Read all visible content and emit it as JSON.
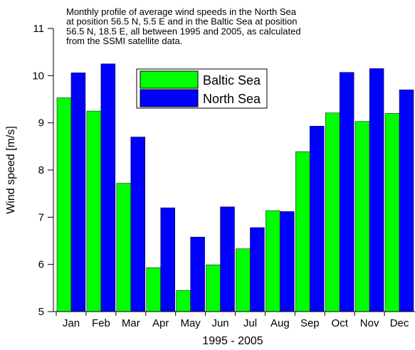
{
  "chart_data": {
    "type": "bar",
    "title": [
      "Monthly profile of average wind speeds in the North Sea",
      "at position 56.5 N, 5.5 E and in the Baltic Sea at position",
      "56.5 N, 18.5 E, all between 1995 and 2005, as calculated",
      "from the SSMI satellite data."
    ],
    "x_label": "1995 - 2005",
    "y_label": "Wind speed  [m/s]",
    "categories": [
      "Jan",
      "Feb",
      "Mar",
      "Apr",
      "May",
      "Jun",
      "Jul",
      "Aug",
      "Sep",
      "Oct",
      "Nov",
      "Dec"
    ],
    "series": [
      {
        "name": "Baltic Sea",
        "color": "#00ff00",
        "values": [
          9.53,
          9.25,
          7.72,
          5.93,
          5.45,
          5.99,
          6.33,
          7.14,
          8.39,
          9.21,
          9.03,
          9.2
        ]
      },
      {
        "name": "North Sea",
        "color": "#0000ff",
        "values": [
          10.06,
          10.25,
          8.7,
          7.2,
          6.58,
          7.22,
          6.78,
          7.12,
          8.93,
          10.07,
          10.15,
          9.7
        ]
      }
    ],
    "ylim": [
      5,
      11
    ],
    "yticks": [
      5,
      6,
      7,
      8,
      9,
      10,
      11
    ],
    "legend": "upper center"
  }
}
